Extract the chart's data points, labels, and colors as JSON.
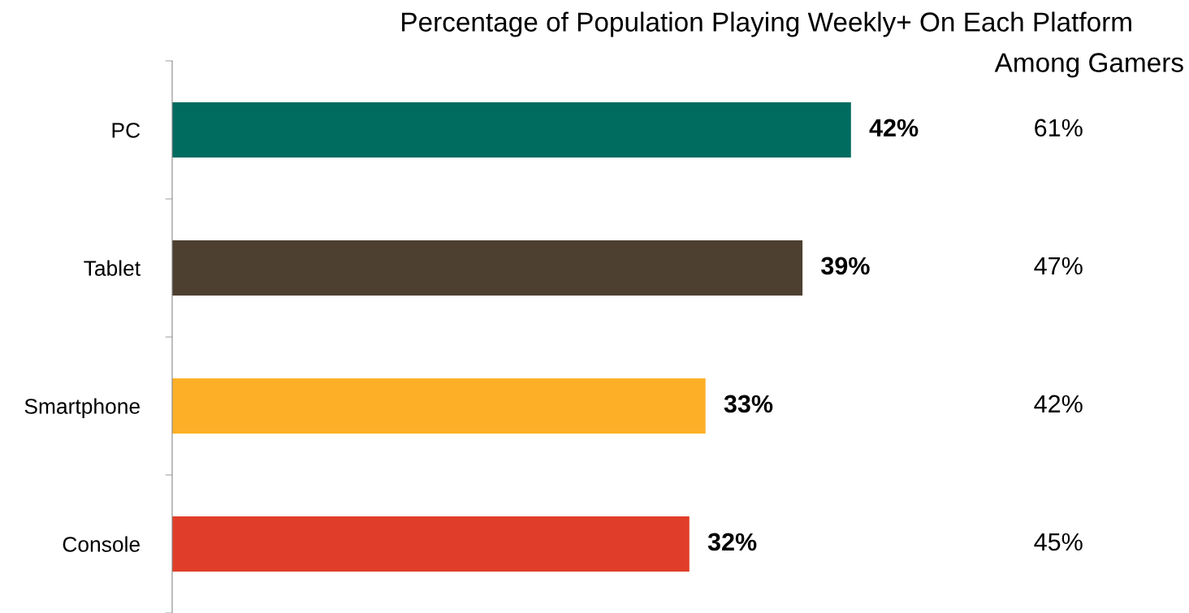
{
  "chart_data": {
    "type": "bar",
    "orientation": "horizontal",
    "title": "Percentage of Population Playing Weekly+ On Each Platform",
    "categories": [
      "PC",
      "Tablet",
      "Smartphone",
      "Console"
    ],
    "values": [
      42,
      39,
      33,
      32
    ],
    "colors": [
      "#006b5f",
      "#4d4031",
      "#fdb027",
      "#e03e2a"
    ],
    "value_labels": [
      "42%",
      "39%",
      "33%",
      "32%"
    ],
    "annotations": [
      "Among Gamers",
      "61%",
      "47%",
      "42%",
      "45%"
    ],
    "grid": false,
    "legend": false
  }
}
